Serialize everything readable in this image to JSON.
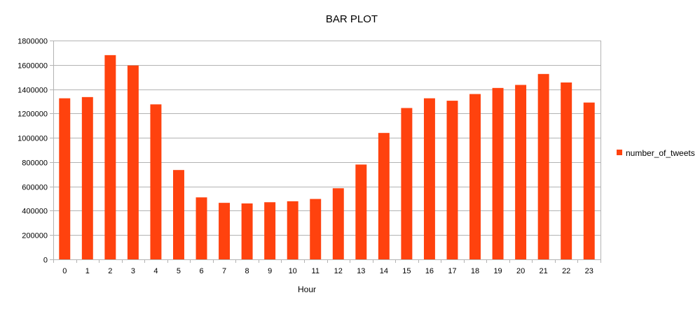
{
  "chart_data": {
    "type": "bar",
    "title": "BAR PLOT",
    "xlabel": "Hour",
    "ylabel": "",
    "ylim": [
      0,
      1800000
    ],
    "yticks": [
      0,
      200000,
      400000,
      600000,
      800000,
      1000000,
      1200000,
      1400000,
      1600000,
      1800000
    ],
    "grid": true,
    "legend_position": "right",
    "categories": [
      "0",
      "1",
      "2",
      "3",
      "4",
      "5",
      "6",
      "7",
      "8",
      "9",
      "10",
      "11",
      "12",
      "13",
      "14",
      "15",
      "16",
      "17",
      "18",
      "19",
      "20",
      "21",
      "22",
      "23"
    ],
    "series": [
      {
        "name": "number_of_tweets",
        "color": "#ff420e",
        "values": [
          1325000,
          1335000,
          1680000,
          1595000,
          1275000,
          735000,
          510000,
          465000,
          460000,
          470000,
          478000,
          497000,
          585000,
          780000,
          1040000,
          1245000,
          1325000,
          1305000,
          1360000,
          1410000,
          1435000,
          1525000,
          1455000,
          1290000
        ]
      }
    ]
  }
}
